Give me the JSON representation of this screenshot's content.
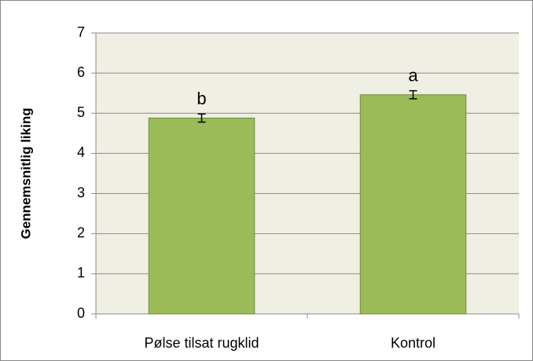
{
  "chart_data": {
    "type": "bar",
    "y_label": "Gennemsnitlig liking",
    "categories": [
      "Pølse tilsat rugklid",
      "Kontrol"
    ],
    "values": [
      4.88,
      5.46
    ],
    "errors": [
      0.1,
      0.1
    ],
    "annotations": [
      "b",
      "a"
    ],
    "color": "#9bbb59",
    "ylim": [
      0,
      7
    ],
    "yticks": [
      0,
      1,
      2,
      3,
      4,
      5,
      6,
      7
    ],
    "grid": true
  }
}
